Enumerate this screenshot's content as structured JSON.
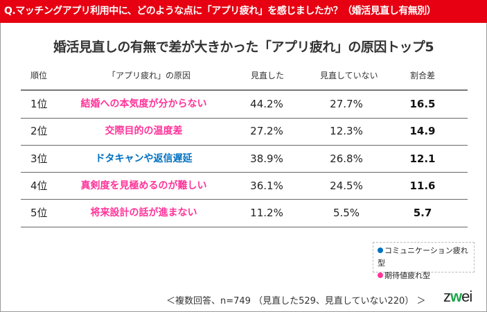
{
  "question": "Q.マッチングアプリ利用中に、どのような点に「アプリ疲れ」を感じましたか？（婚活見直し有無別）",
  "title": "婚活見直しの有無で差が大きかった「アプリ疲れ」の原因トップ5",
  "headers": {
    "rank": "順位",
    "reason": "「アプリ疲れ」の原因",
    "reviewed": "見直した",
    "not_reviewed": "見直していない",
    "diff": "割合差"
  },
  "colors": {
    "communication": "#0070c0",
    "expectation": "#ff3399",
    "header_bar": "#e60012"
  },
  "rows": [
    {
      "rank": "1位",
      "reason": "結婚への本気度が分からない",
      "type": "expectation",
      "reviewed": "44.2%",
      "not_reviewed": "27.7%",
      "diff": "16.5"
    },
    {
      "rank": "2位",
      "reason": "交際目的の温度差",
      "type": "expectation",
      "reviewed": "27.2%",
      "not_reviewed": "12.3%",
      "diff": "14.9"
    },
    {
      "rank": "3位",
      "reason": "ドタキャンや返信遅延",
      "type": "communication",
      "reviewed": "38.9%",
      "not_reviewed": "26.8%",
      "diff": "12.1"
    },
    {
      "rank": "4位",
      "reason": "真剣度を見極めるのが難しい",
      "type": "expectation",
      "reviewed": "36.1%",
      "not_reviewed": "24.5%",
      "diff": "11.6"
    },
    {
      "rank": "5位",
      "reason": "将来設計の話が進まない",
      "type": "expectation",
      "reviewed": "11.2%",
      "not_reviewed": "5.5%",
      "diff": "5.7"
    }
  ],
  "legend": {
    "communication": "コミュニケーション疲れ型",
    "expectation": "期待値疲れ型"
  },
  "footnote": "＜複数回答、n=749 （見直した529、見直していない220） ＞",
  "logo": {
    "pre": "z",
    "mid": "w",
    "post": "ei"
  }
}
